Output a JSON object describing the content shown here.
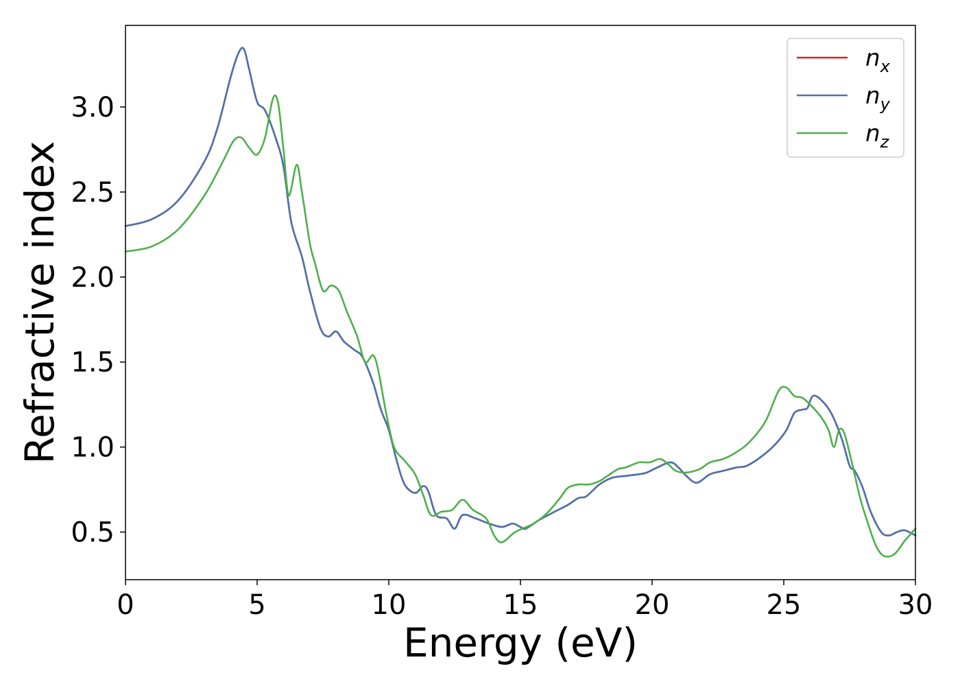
{
  "chart_data": {
    "type": "line",
    "title": "",
    "xlabel": "Energy (eV)",
    "ylabel": "Refractive index",
    "xlim": [
      0,
      30
    ],
    "ylim": [
      0.22,
      3.48
    ],
    "xticks": [
      0,
      5,
      10,
      15,
      20,
      25,
      30
    ],
    "yticks": [
      0.5,
      1.0,
      1.5,
      2.0,
      2.5,
      3.0
    ],
    "xtick_labels": [
      "0",
      "5",
      "10",
      "15",
      "20",
      "25",
      "30"
    ],
    "ytick_labels": [
      "0.5",
      "1.0",
      "1.5",
      "2.0",
      "2.5",
      "3.0"
    ],
    "grid": false,
    "legend_position": "top-right",
    "series": [
      {
        "name": "n_x",
        "label_base": "n",
        "label_sub": "x",
        "color": "#e41a1c",
        "x": [
          0,
          1,
          2,
          3,
          3.5,
          4.0,
          4.3,
          4.5,
          4.7,
          5.0,
          5.3,
          5.7,
          6.0,
          6.3,
          6.7,
          7.0,
          7.4,
          7.7,
          8.0,
          8.3,
          8.7,
          9.0,
          9.4,
          9.7,
          10.0,
          10.3,
          10.6,
          11.0,
          11.3,
          11.5,
          11.8,
          12.2,
          12.5,
          12.8,
          13.3,
          13.8,
          14.3,
          14.7,
          15.0,
          15.2,
          15.7,
          16.3,
          16.8,
          17.2,
          17.5,
          18.0,
          18.5,
          19.0,
          19.5,
          19.8,
          20.2,
          20.7,
          21.0,
          21.3,
          21.7,
          22.2,
          22.7,
          23.2,
          23.6,
          24.2,
          24.7,
          25.1,
          25.4,
          25.7,
          25.9,
          26.1,
          26.4,
          26.8,
          27.2,
          27.5,
          27.7,
          28.0,
          28.3,
          28.7,
          29.0,
          29.3,
          29.6,
          30.0
        ],
        "y": [
          2.3,
          2.34,
          2.45,
          2.68,
          2.88,
          3.18,
          3.32,
          3.34,
          3.22,
          3.03,
          2.98,
          2.82,
          2.65,
          2.32,
          2.12,
          1.92,
          1.7,
          1.65,
          1.68,
          1.62,
          1.57,
          1.53,
          1.38,
          1.22,
          1.1,
          0.92,
          0.78,
          0.73,
          0.77,
          0.74,
          0.6,
          0.58,
          0.52,
          0.6,
          0.58,
          0.55,
          0.53,
          0.55,
          0.53,
          0.52,
          0.57,
          0.62,
          0.66,
          0.7,
          0.71,
          0.78,
          0.82,
          0.83,
          0.84,
          0.85,
          0.88,
          0.91,
          0.88,
          0.83,
          0.79,
          0.84,
          0.86,
          0.88,
          0.89,
          0.95,
          1.02,
          1.1,
          1.2,
          1.22,
          1.23,
          1.3,
          1.28,
          1.2,
          1.05,
          0.89,
          0.86,
          0.76,
          0.62,
          0.5,
          0.48,
          0.5,
          0.51,
          0.48
        ]
      },
      {
        "name": "n_y",
        "label_base": "n",
        "label_sub": "y",
        "color": "#4a74ae",
        "x": [
          0,
          1,
          2,
          3,
          3.5,
          4.0,
          4.3,
          4.5,
          4.7,
          5.0,
          5.3,
          5.7,
          6.0,
          6.3,
          6.7,
          7.0,
          7.4,
          7.7,
          8.0,
          8.3,
          8.7,
          9.0,
          9.4,
          9.7,
          10.0,
          10.3,
          10.6,
          11.0,
          11.3,
          11.5,
          11.8,
          12.2,
          12.5,
          12.8,
          13.3,
          13.8,
          14.3,
          14.7,
          15.0,
          15.2,
          15.7,
          16.3,
          16.8,
          17.2,
          17.5,
          18.0,
          18.5,
          19.0,
          19.5,
          19.8,
          20.2,
          20.7,
          21.0,
          21.3,
          21.7,
          22.2,
          22.7,
          23.2,
          23.6,
          24.2,
          24.7,
          25.1,
          25.4,
          25.7,
          25.9,
          26.1,
          26.4,
          26.8,
          27.2,
          27.5,
          27.7,
          28.0,
          28.3,
          28.7,
          29.0,
          29.3,
          29.6,
          30.0
        ],
        "y": [
          2.3,
          2.34,
          2.45,
          2.68,
          2.88,
          3.18,
          3.32,
          3.34,
          3.22,
          3.03,
          2.98,
          2.82,
          2.65,
          2.32,
          2.12,
          1.92,
          1.7,
          1.65,
          1.68,
          1.62,
          1.57,
          1.53,
          1.38,
          1.22,
          1.1,
          0.92,
          0.78,
          0.73,
          0.77,
          0.74,
          0.6,
          0.58,
          0.52,
          0.6,
          0.58,
          0.55,
          0.53,
          0.55,
          0.53,
          0.52,
          0.57,
          0.62,
          0.66,
          0.7,
          0.71,
          0.78,
          0.82,
          0.83,
          0.84,
          0.85,
          0.88,
          0.91,
          0.88,
          0.83,
          0.79,
          0.84,
          0.86,
          0.88,
          0.89,
          0.95,
          1.02,
          1.1,
          1.2,
          1.22,
          1.23,
          1.3,
          1.28,
          1.2,
          1.05,
          0.89,
          0.86,
          0.76,
          0.62,
          0.5,
          0.48,
          0.5,
          0.51,
          0.48
        ]
      },
      {
        "name": "n_z",
        "label_base": "n",
        "label_sub": "z",
        "color": "#4daf4a",
        "x": [
          0,
          1,
          2,
          3,
          3.7,
          4.1,
          4.4,
          4.7,
          5.0,
          5.3,
          5.6,
          5.8,
          6.0,
          6.2,
          6.5,
          6.7,
          7.0,
          7.2,
          7.5,
          7.8,
          8.1,
          8.4,
          8.8,
          9.1,
          9.4,
          9.6,
          9.9,
          10.2,
          10.6,
          11.0,
          11.3,
          11.6,
          12.0,
          12.4,
          12.8,
          13.2,
          13.7,
          14.0,
          14.3,
          14.8,
          15.5,
          16.0,
          16.5,
          16.8,
          17.2,
          17.6,
          18.0,
          18.3,
          18.7,
          19.0,
          19.5,
          19.9,
          20.3,
          20.6,
          20.9,
          21.3,
          21.8,
          22.2,
          22.7,
          23.2,
          23.7,
          24.3,
          24.8,
          25.1,
          25.4,
          25.7,
          26.0,
          26.4,
          26.7,
          26.9,
          27.1,
          27.3,
          27.6,
          27.9,
          28.2,
          28.5,
          28.8,
          29.2,
          29.6,
          30.0
        ],
        "y": [
          2.15,
          2.18,
          2.28,
          2.48,
          2.68,
          2.8,
          2.82,
          2.76,
          2.72,
          2.82,
          3.05,
          3.02,
          2.75,
          2.48,
          2.66,
          2.5,
          2.2,
          2.08,
          1.92,
          1.95,
          1.92,
          1.8,
          1.65,
          1.5,
          1.54,
          1.45,
          1.2,
          1.0,
          0.92,
          0.84,
          0.72,
          0.6,
          0.62,
          0.63,
          0.69,
          0.63,
          0.58,
          0.48,
          0.44,
          0.5,
          0.55,
          0.61,
          0.7,
          0.76,
          0.78,
          0.78,
          0.8,
          0.83,
          0.87,
          0.88,
          0.91,
          0.91,
          0.93,
          0.9,
          0.86,
          0.85,
          0.87,
          0.91,
          0.93,
          0.97,
          1.03,
          1.15,
          1.33,
          1.35,
          1.3,
          1.29,
          1.25,
          1.18,
          1.1,
          1.0,
          1.1,
          1.08,
          0.9,
          0.7,
          0.55,
          0.42,
          0.36,
          0.37,
          0.45,
          0.52
        ]
      }
    ]
  }
}
